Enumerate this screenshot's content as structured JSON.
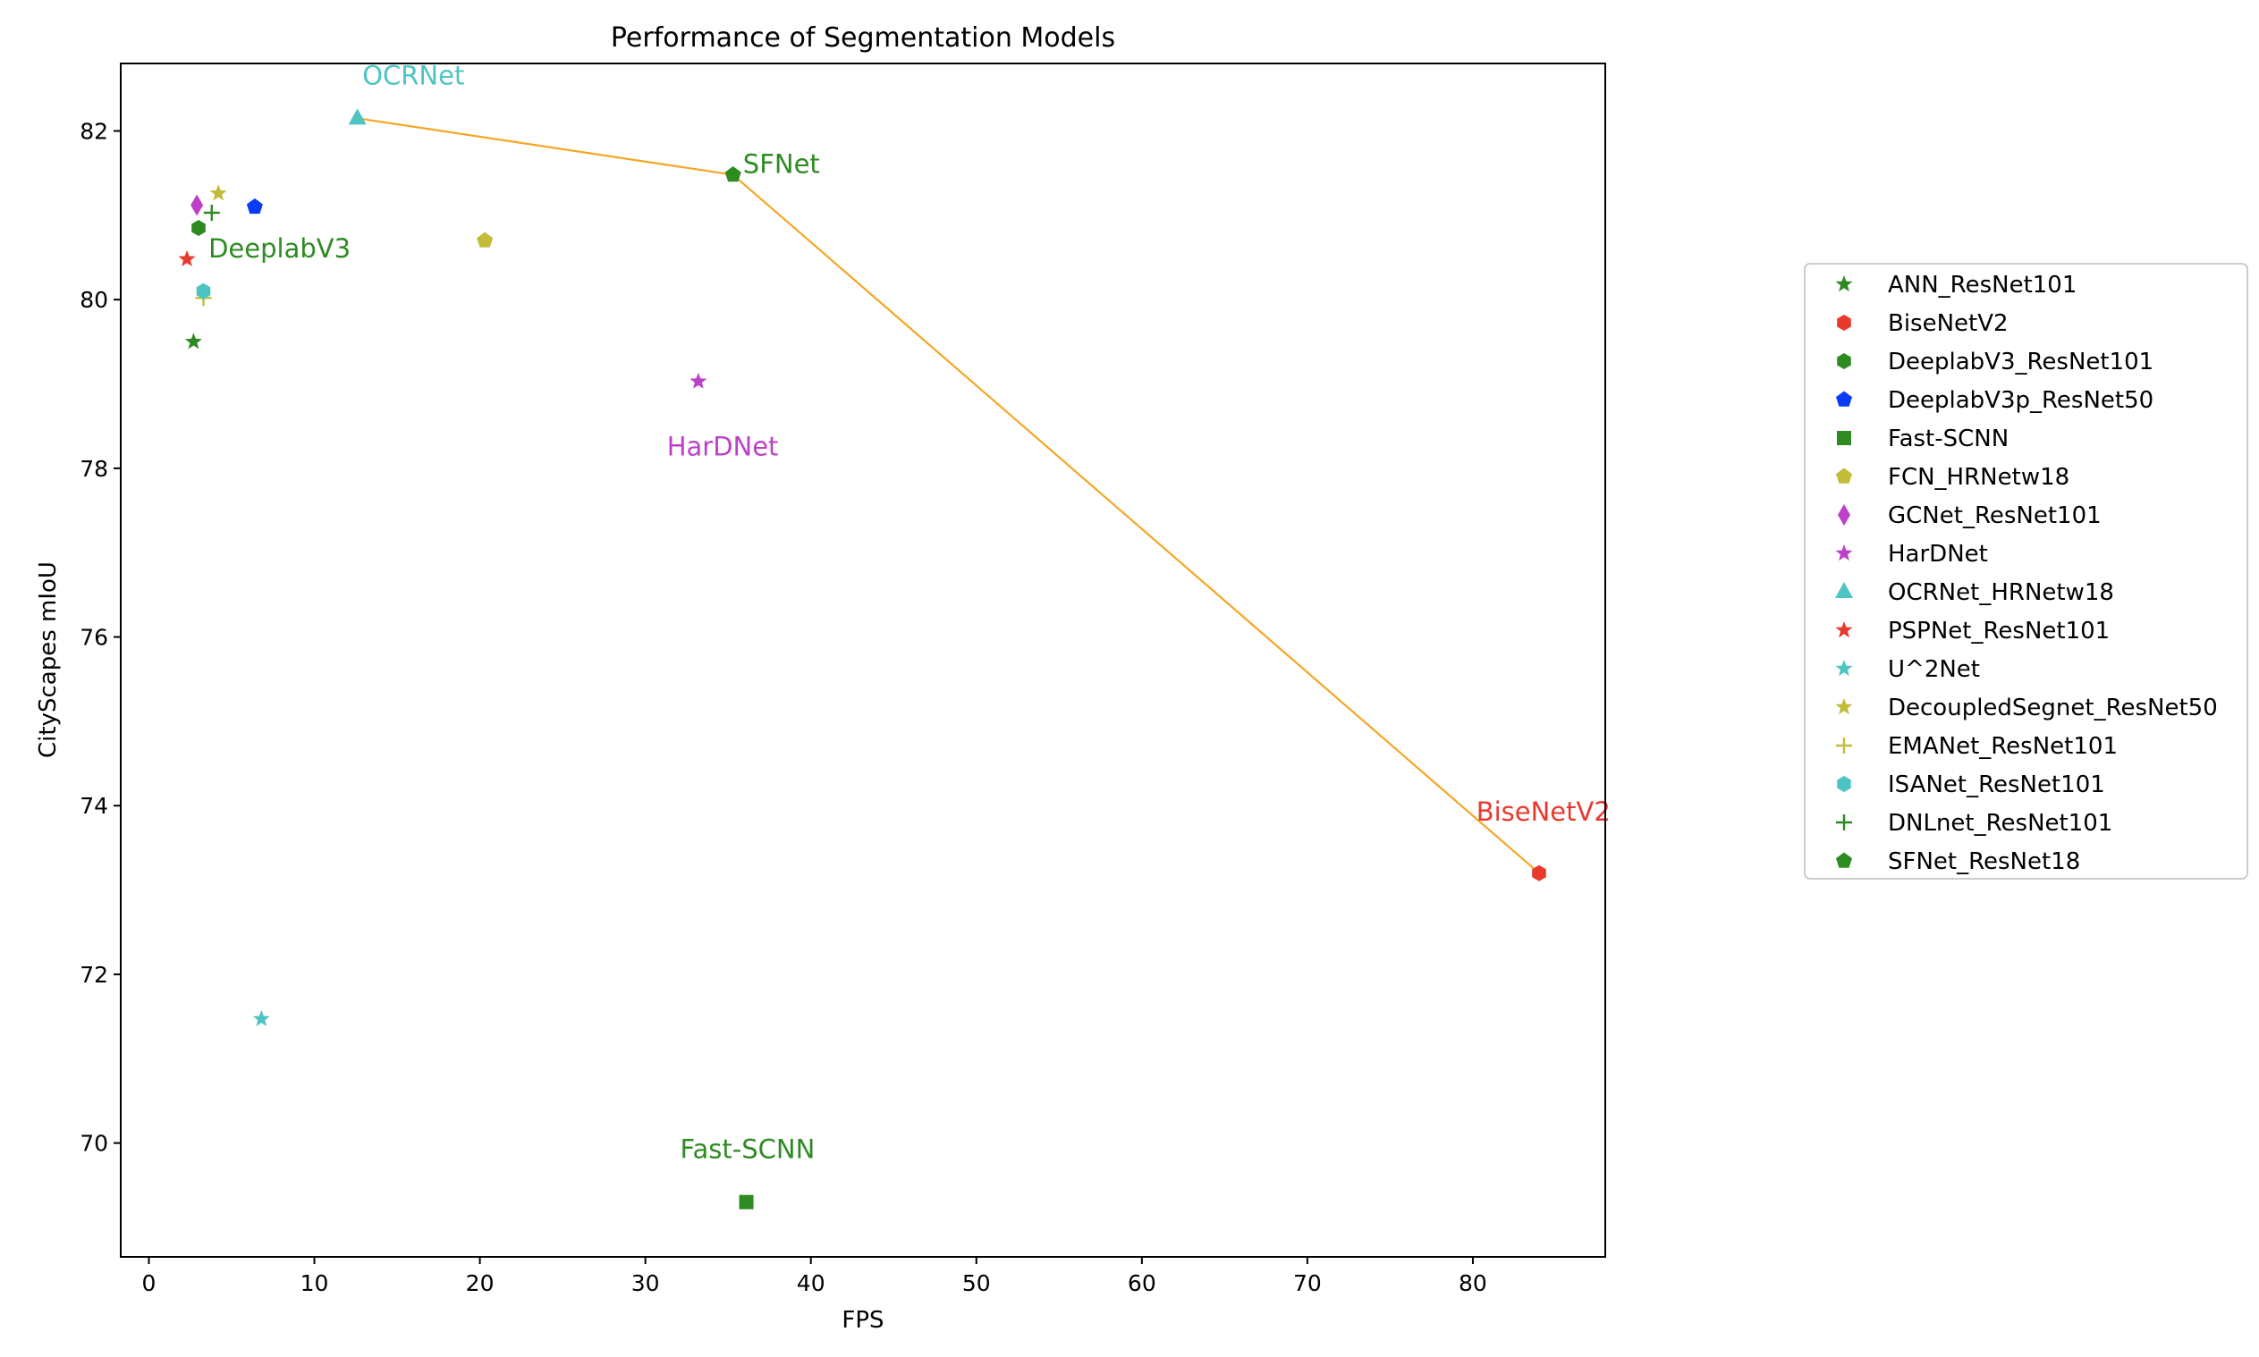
{
  "chart_data": {
    "type": "scatter",
    "title": "Performance of Segmentation Models",
    "xlabel": "FPS",
    "ylabel": "CityScapes mIoU",
    "xlim": [
      -1.7,
      88.0
    ],
    "ylim": [
      68.65,
      82.8
    ],
    "xticks": [
      0,
      10,
      20,
      30,
      40,
      50,
      60,
      70,
      80
    ],
    "yticks": [
      70,
      72,
      74,
      76,
      78,
      80,
      82
    ],
    "grid": false,
    "legend_position": "right (outside plot)",
    "series": [
      {
        "name": "ANN_ResNet101",
        "marker": "star",
        "color": "#2e8b22",
        "x": 2.7,
        "y": 79.5
      },
      {
        "name": "BiseNetV2",
        "marker": "hexagon",
        "color": "#e8392c",
        "x": 84.0,
        "y": 73.2
      },
      {
        "name": "DeeplabV3_ResNet101",
        "marker": "hexagon",
        "color": "#2e8b22",
        "x": 3.0,
        "y": 80.85
      },
      {
        "name": "DeeplabV3p_ResNet50",
        "marker": "pentagon",
        "color": "#0b3cf5",
        "x": 6.4,
        "y": 81.1
      },
      {
        "name": "Fast-SCNN",
        "marker": "square",
        "color": "#2e8b22",
        "x": 36.1,
        "y": 69.3
      },
      {
        "name": "FCN_HRNetw18",
        "marker": "pentagon",
        "color": "#c2bc3a",
        "x": 20.3,
        "y": 80.7
      },
      {
        "name": "GCNet_ResNet101",
        "marker": "diamond",
        "color": "#bd40c9",
        "x": 2.9,
        "y": 81.12
      },
      {
        "name": "HarDNet",
        "marker": "star",
        "color": "#bd40c9",
        "x": 33.2,
        "y": 79.03
      },
      {
        "name": "OCRNet_HRNetw18",
        "marker": "triangle",
        "color": "#4dc4c4",
        "x": 12.6,
        "y": 82.15
      },
      {
        "name": "PSPNet_ResNet101",
        "marker": "star",
        "color": "#e8392c",
        "x": 2.3,
        "y": 80.48
      },
      {
        "name": "U^2Net",
        "marker": "star",
        "color": "#4dc4c4",
        "x": 6.8,
        "y": 71.47
      },
      {
        "name": "DecoupledSegnet_ResNet50",
        "marker": "star",
        "color": "#c2bc3a",
        "x": 4.2,
        "y": 81.26
      },
      {
        "name": "EMANet_ResNet101",
        "marker": "plus",
        "color": "#c2bc3a",
        "x": 3.3,
        "y": 80.02
      },
      {
        "name": "ISANet_ResNet101",
        "marker": "hexagon",
        "color": "#4dc4c4",
        "x": 3.3,
        "y": 80.1
      },
      {
        "name": "DNLnet_ResNet101",
        "marker": "plus",
        "color": "#2e8b22",
        "x": 3.8,
        "y": 81.03
      },
      {
        "name": "SFNet_ResNet18",
        "marker": "pentagon",
        "color": "#2e8b22",
        "x": 35.3,
        "y": 81.48
      }
    ],
    "frontier": {
      "color": "#f5a623",
      "x": [
        12.6,
        35.3,
        84.0
      ],
      "y": [
        82.15,
        81.48,
        73.2
      ]
    },
    "annotations": [
      {
        "text": "OCRNet",
        "color": "#4dc4c4",
        "x": 12.9,
        "y": 82.55
      },
      {
        "text": "SFNet",
        "color": "#2e8b22",
        "x": 35.9,
        "y": 81.5
      },
      {
        "text": "DeeplabV3",
        "color": "#2e8b22",
        "x": 3.6,
        "y": 80.5
      },
      {
        "text": "HarDNet",
        "color": "#bd40c9",
        "x": 31.3,
        "y": 78.15
      },
      {
        "text": "BiseNetV2",
        "color": "#e8392c",
        "x": 80.2,
        "y": 73.82
      },
      {
        "text": "Fast-SCNN",
        "color": "#2e8b22",
        "x": 32.1,
        "y": 69.82
      }
    ]
  }
}
